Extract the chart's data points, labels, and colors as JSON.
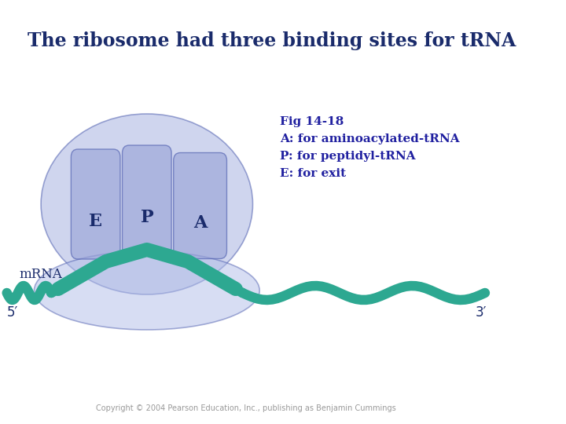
{
  "title": "The ribosome had three binding sites for tRNA",
  "title_color": "#1a2b6b",
  "title_fontsize": 17,
  "bg_color": "#ffffff",
  "ribosome_fill": "#a8b4e0",
  "ribosome_edge": "#5060b0",
  "ribosome_alpha": 0.55,
  "lower_fill": "#b0bce8",
  "lower_alpha": 0.5,
  "slot_fill": "#9aa4d8",
  "slot_alpha": 0.65,
  "mrna_color": "#2da891",
  "label_color": "#1a2b6b",
  "annotation_color": "#2020a0",
  "labels": [
    "E",
    "P",
    "A"
  ],
  "fig_text_line1": "Fig 14-18",
  "fig_text_line2": "A: for aminoacylated-tRNA",
  "fig_text_line3": "P: for peptidyl-tRNA",
  "fig_text_line4": "E: for exit",
  "mrna_label": "mRNA",
  "label_5prime": "5′",
  "label_3prime": "3′",
  "copyright": "Copyright © 2004 Pearson Education, Inc., publishing as Benjamin Cummings"
}
